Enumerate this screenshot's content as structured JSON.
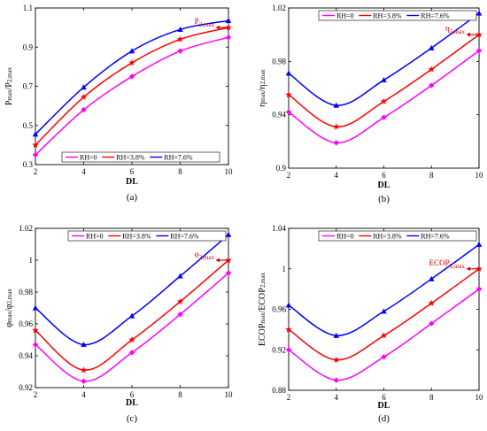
{
  "chart_data": [
    {
      "type": "line",
      "panel_label": "(a)",
      "xlabel": "DL",
      "ylabel": {
        "main": "P",
        "main_sub": "max",
        "den": "P",
        "den_sub": "2,max"
      },
      "xlim": [
        2,
        10
      ],
      "ylim": [
        0.3,
        1.1
      ],
      "xticks": [
        2,
        4,
        6,
        8,
        10
      ],
      "yticks": [
        0.3,
        0.5,
        0.7,
        0.9,
        1.1
      ],
      "ytick_labels": [
        "0.3",
        "0.5",
        "0.7",
        "0.9",
        "1.1"
      ],
      "legend_pos": "bottom-left",
      "annotation": {
        "text": "P",
        "sub": "2,max",
        "x": 10,
        "y": 1.0
      },
      "series": [
        {
          "name": "RH=0",
          "color": "#ff00ff",
          "marker": "diamond",
          "x": [
            2,
            4,
            6,
            8,
            10
          ],
          "values": [
            0.35,
            0.58,
            0.75,
            0.88,
            0.95
          ]
        },
        {
          "name": "RH=3.8%",
          "color": "#ff0000",
          "marker": "star",
          "x": [
            2,
            4,
            6,
            8,
            10
          ],
          "values": [
            0.4,
            0.645,
            0.82,
            0.94,
            1.0
          ]
        },
        {
          "name": "RH=7.6%",
          "color": "#0000ff",
          "marker": "triangle",
          "x": [
            2,
            4,
            6,
            8,
            10
          ],
          "values": [
            0.455,
            0.695,
            0.88,
            0.99,
            1.035
          ]
        }
      ]
    },
    {
      "type": "line",
      "panel_label": "(b)",
      "xlabel": "DL",
      "ylabel": {
        "main": "η",
        "main_sub": "max",
        "den": "η",
        "den_sub": "2,max"
      },
      "xlim": [
        2,
        10
      ],
      "ylim": [
        0.9,
        1.02
      ],
      "xticks": [
        2,
        4,
        6,
        8,
        10
      ],
      "yticks": [
        0.9,
        0.94,
        0.98,
        1.02
      ],
      "ytick_labels": [
        "0.9",
        "0.94",
        "0.98",
        "1.02"
      ],
      "legend_pos": "top",
      "annotation": {
        "text": "η",
        "sub": "2,max",
        "x": 10,
        "y": 1.0
      },
      "series": [
        {
          "name": "RH=0",
          "color": "#ff00ff",
          "marker": "diamond",
          "x": [
            2,
            4,
            6,
            8,
            10
          ],
          "values": [
            0.942,
            0.919,
            0.938,
            0.962,
            0.988
          ]
        },
        {
          "name": "RH=3.8%",
          "color": "#ff0000",
          "marker": "star",
          "x": [
            2,
            4,
            6,
            8,
            10
          ],
          "values": [
            0.955,
            0.931,
            0.95,
            0.974,
            1.0
          ]
        },
        {
          "name": "RH=7.6%",
          "color": "#0000ff",
          "marker": "triangle",
          "x": [
            2,
            4,
            6,
            8,
            10
          ],
          "values": [
            0.971,
            0.947,
            0.966,
            0.99,
            1.016
          ]
        }
      ]
    },
    {
      "type": "line",
      "panel_label": "(c)",
      "xlabel": "DL",
      "ylabel": {
        "main": "φ",
        "main_sub": "max",
        "den": "φ",
        "den_sub": "2,max"
      },
      "xlim": [
        2,
        10
      ],
      "ylim": [
        0.92,
        1.02
      ],
      "xticks": [
        2,
        4,
        6,
        8,
        10
      ],
      "yticks": [
        0.92,
        0.94,
        0.96,
        0.98,
        1.0,
        1.02
      ],
      "ytick_labels": [
        "0.92",
        "0.94",
        "0.96",
        "0.98",
        "1",
        "1.02"
      ],
      "legend_pos": "top",
      "annotation": {
        "text": "φ",
        "sub": "2,max",
        "x": 10,
        "y": 1.0
      },
      "series": [
        {
          "name": "RH=0",
          "color": "#ff00ff",
          "marker": "diamond",
          "x": [
            2,
            4,
            6,
            8,
            10
          ],
          "values": [
            0.947,
            0.924,
            0.942,
            0.966,
            0.992
          ]
        },
        {
          "name": "RH=3.8%",
          "color": "#ff0000",
          "marker": "star",
          "x": [
            2,
            4,
            6,
            8,
            10
          ],
          "values": [
            0.956,
            0.931,
            0.95,
            0.974,
            1.0
          ]
        },
        {
          "name": "RH=7.6%",
          "color": "#0000ff",
          "marker": "triangle",
          "x": [
            2,
            4,
            6,
            8,
            10
          ],
          "values": [
            0.97,
            0.947,
            0.965,
            0.99,
            1.016
          ]
        }
      ]
    },
    {
      "type": "line",
      "panel_label": "(d)",
      "xlabel": "DL",
      "ylabel": {
        "main": "ECOP",
        "main_sub": "max",
        "den": "ECOP",
        "den_sub": "2,max"
      },
      "xlim": [
        2,
        10
      ],
      "ylim": [
        0.88,
        1.04
      ],
      "xticks": [
        2,
        4,
        6,
        8,
        10
      ],
      "yticks": [
        0.88,
        0.92,
        0.96,
        1.0,
        1.04
      ],
      "ytick_labels": [
        "0.88",
        "0.92",
        "0.96",
        "1",
        "1.04"
      ],
      "legend_pos": "top",
      "annotation": {
        "text": "ECOP",
        "sub": "2,max",
        "x": 10,
        "y": 1.0
      },
      "series": [
        {
          "name": "RH=0",
          "color": "#ff00ff",
          "marker": "diamond",
          "x": [
            2,
            4,
            6,
            8,
            10
          ],
          "values": [
            0.92,
            0.89,
            0.913,
            0.946,
            0.98
          ]
        },
        {
          "name": "RH=3.8%",
          "color": "#ff0000",
          "marker": "star",
          "x": [
            2,
            4,
            6,
            8,
            10
          ],
          "values": [
            0.94,
            0.91,
            0.934,
            0.966,
            1.0
          ]
        },
        {
          "name": "RH=7.6%",
          "color": "#0000ff",
          "marker": "triangle",
          "x": [
            2,
            4,
            6,
            8,
            10
          ],
          "values": [
            0.964,
            0.934,
            0.958,
            0.99,
            1.024
          ]
        }
      ]
    }
  ]
}
